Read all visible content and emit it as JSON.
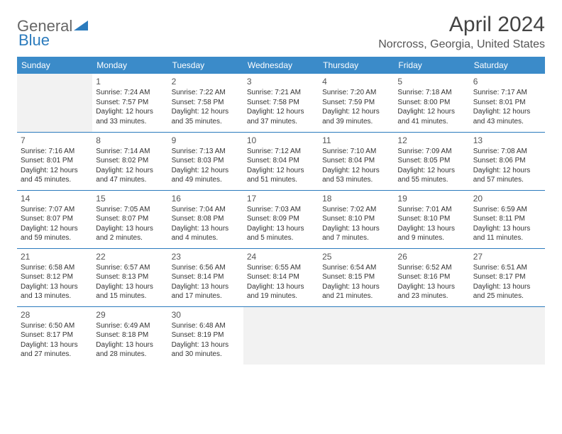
{
  "logo": {
    "text1": "General",
    "text2": "Blue"
  },
  "title": "April 2024",
  "location": "Norcross, Georgia, United States",
  "colors": {
    "header_bg": "#3b8bc9",
    "header_text": "#ffffff",
    "border": "#2b7bbd",
    "empty_bg": "#f2f2f2",
    "text": "#333333",
    "title_text": "#444444"
  },
  "weekdays": [
    "Sunday",
    "Monday",
    "Tuesday",
    "Wednesday",
    "Thursday",
    "Friday",
    "Saturday"
  ],
  "weeks": [
    [
      {
        "empty": true
      },
      {
        "day": "1",
        "sunrise": "Sunrise: 7:24 AM",
        "sunset": "Sunset: 7:57 PM",
        "daylight": "Daylight: 12 hours and 33 minutes."
      },
      {
        "day": "2",
        "sunrise": "Sunrise: 7:22 AM",
        "sunset": "Sunset: 7:58 PM",
        "daylight": "Daylight: 12 hours and 35 minutes."
      },
      {
        "day": "3",
        "sunrise": "Sunrise: 7:21 AM",
        "sunset": "Sunset: 7:58 PM",
        "daylight": "Daylight: 12 hours and 37 minutes."
      },
      {
        "day": "4",
        "sunrise": "Sunrise: 7:20 AM",
        "sunset": "Sunset: 7:59 PM",
        "daylight": "Daylight: 12 hours and 39 minutes."
      },
      {
        "day": "5",
        "sunrise": "Sunrise: 7:18 AM",
        "sunset": "Sunset: 8:00 PM",
        "daylight": "Daylight: 12 hours and 41 minutes."
      },
      {
        "day": "6",
        "sunrise": "Sunrise: 7:17 AM",
        "sunset": "Sunset: 8:01 PM",
        "daylight": "Daylight: 12 hours and 43 minutes."
      }
    ],
    [
      {
        "day": "7",
        "sunrise": "Sunrise: 7:16 AM",
        "sunset": "Sunset: 8:01 PM",
        "daylight": "Daylight: 12 hours and 45 minutes."
      },
      {
        "day": "8",
        "sunrise": "Sunrise: 7:14 AM",
        "sunset": "Sunset: 8:02 PM",
        "daylight": "Daylight: 12 hours and 47 minutes."
      },
      {
        "day": "9",
        "sunrise": "Sunrise: 7:13 AM",
        "sunset": "Sunset: 8:03 PM",
        "daylight": "Daylight: 12 hours and 49 minutes."
      },
      {
        "day": "10",
        "sunrise": "Sunrise: 7:12 AM",
        "sunset": "Sunset: 8:04 PM",
        "daylight": "Daylight: 12 hours and 51 minutes."
      },
      {
        "day": "11",
        "sunrise": "Sunrise: 7:10 AM",
        "sunset": "Sunset: 8:04 PM",
        "daylight": "Daylight: 12 hours and 53 minutes."
      },
      {
        "day": "12",
        "sunrise": "Sunrise: 7:09 AM",
        "sunset": "Sunset: 8:05 PM",
        "daylight": "Daylight: 12 hours and 55 minutes."
      },
      {
        "day": "13",
        "sunrise": "Sunrise: 7:08 AM",
        "sunset": "Sunset: 8:06 PM",
        "daylight": "Daylight: 12 hours and 57 minutes."
      }
    ],
    [
      {
        "day": "14",
        "sunrise": "Sunrise: 7:07 AM",
        "sunset": "Sunset: 8:07 PM",
        "daylight": "Daylight: 12 hours and 59 minutes."
      },
      {
        "day": "15",
        "sunrise": "Sunrise: 7:05 AM",
        "sunset": "Sunset: 8:07 PM",
        "daylight": "Daylight: 13 hours and 2 minutes."
      },
      {
        "day": "16",
        "sunrise": "Sunrise: 7:04 AM",
        "sunset": "Sunset: 8:08 PM",
        "daylight": "Daylight: 13 hours and 4 minutes."
      },
      {
        "day": "17",
        "sunrise": "Sunrise: 7:03 AM",
        "sunset": "Sunset: 8:09 PM",
        "daylight": "Daylight: 13 hours and 5 minutes."
      },
      {
        "day": "18",
        "sunrise": "Sunrise: 7:02 AM",
        "sunset": "Sunset: 8:10 PM",
        "daylight": "Daylight: 13 hours and 7 minutes."
      },
      {
        "day": "19",
        "sunrise": "Sunrise: 7:01 AM",
        "sunset": "Sunset: 8:10 PM",
        "daylight": "Daylight: 13 hours and 9 minutes."
      },
      {
        "day": "20",
        "sunrise": "Sunrise: 6:59 AM",
        "sunset": "Sunset: 8:11 PM",
        "daylight": "Daylight: 13 hours and 11 minutes."
      }
    ],
    [
      {
        "day": "21",
        "sunrise": "Sunrise: 6:58 AM",
        "sunset": "Sunset: 8:12 PM",
        "daylight": "Daylight: 13 hours and 13 minutes."
      },
      {
        "day": "22",
        "sunrise": "Sunrise: 6:57 AM",
        "sunset": "Sunset: 8:13 PM",
        "daylight": "Daylight: 13 hours and 15 minutes."
      },
      {
        "day": "23",
        "sunrise": "Sunrise: 6:56 AM",
        "sunset": "Sunset: 8:14 PM",
        "daylight": "Daylight: 13 hours and 17 minutes."
      },
      {
        "day": "24",
        "sunrise": "Sunrise: 6:55 AM",
        "sunset": "Sunset: 8:14 PM",
        "daylight": "Daylight: 13 hours and 19 minutes."
      },
      {
        "day": "25",
        "sunrise": "Sunrise: 6:54 AM",
        "sunset": "Sunset: 8:15 PM",
        "daylight": "Daylight: 13 hours and 21 minutes."
      },
      {
        "day": "26",
        "sunrise": "Sunrise: 6:52 AM",
        "sunset": "Sunset: 8:16 PM",
        "daylight": "Daylight: 13 hours and 23 minutes."
      },
      {
        "day": "27",
        "sunrise": "Sunrise: 6:51 AM",
        "sunset": "Sunset: 8:17 PM",
        "daylight": "Daylight: 13 hours and 25 minutes."
      }
    ],
    [
      {
        "day": "28",
        "sunrise": "Sunrise: 6:50 AM",
        "sunset": "Sunset: 8:17 PM",
        "daylight": "Daylight: 13 hours and 27 minutes."
      },
      {
        "day": "29",
        "sunrise": "Sunrise: 6:49 AM",
        "sunset": "Sunset: 8:18 PM",
        "daylight": "Daylight: 13 hours and 28 minutes."
      },
      {
        "day": "30",
        "sunrise": "Sunrise: 6:48 AM",
        "sunset": "Sunset: 8:19 PM",
        "daylight": "Daylight: 13 hours and 30 minutes."
      },
      {
        "empty": true
      },
      {
        "empty": true
      },
      {
        "empty": true
      },
      {
        "empty": true
      }
    ]
  ]
}
